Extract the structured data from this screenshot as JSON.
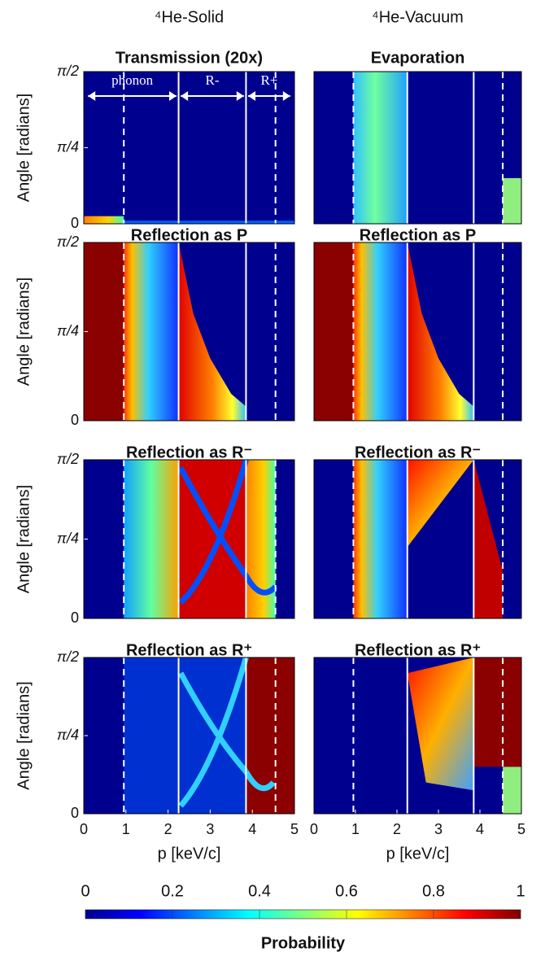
{
  "column_titles": [
    "⁴He-Solid",
    "⁴He-Vacuum"
  ],
  "chart_data": [
    {
      "type": "heatmap",
      "title": "Transmission (20x)",
      "ylabel": "Angle [radians]",
      "xlim": [
        0,
        5
      ],
      "ylim": [
        0,
        1.5708
      ],
      "yticks": [
        0,
        {
          "value": 0.7854,
          "label": "π/4"
        },
        {
          "value": 1.5708,
          "label": "π/2"
        }
      ],
      "dashed_lines": [
        0.95,
        4.55
      ],
      "solid_lines": [
        2.25,
        3.85
      ],
      "annotations": [
        "phonon",
        "R-",
        "R+"
      ]
    },
    {
      "type": "heatmap",
      "title": "Evaporation",
      "xlim": [
        0,
        5
      ],
      "ylim": [
        0,
        1.5708
      ],
      "dashed_lines": [
        0.95,
        4.55
      ],
      "solid_lines": [
        2.25,
        3.85
      ]
    },
    {
      "type": "heatmap",
      "title": "Reflection as P",
      "ylabel": "Angle [radians]",
      "xlim": [
        0,
        5
      ],
      "ylim": [
        0,
        1.5708
      ],
      "yticks": [
        0,
        {
          "value": 0.7854,
          "label": "π/4"
        },
        {
          "value": 1.5708,
          "label": "π/2"
        }
      ],
      "dashed_lines": [
        0.95,
        4.55
      ],
      "solid_lines": [
        2.25,
        3.85
      ]
    },
    {
      "type": "heatmap",
      "title": "Reflection as P",
      "xlim": [
        0,
        5
      ],
      "ylim": [
        0,
        1.5708
      ],
      "dashed_lines": [
        0.95,
        4.55
      ],
      "solid_lines": [
        2.25,
        3.85
      ]
    },
    {
      "type": "heatmap",
      "title": "Reflection as R⁻",
      "ylabel": "Angle [radians]",
      "xlim": [
        0,
        5
      ],
      "ylim": [
        0,
        1.5708
      ],
      "yticks": [
        0,
        {
          "value": 0.7854,
          "label": "π/4"
        },
        {
          "value": 1.5708,
          "label": "π/2"
        }
      ],
      "dashed_lines": [
        0.95,
        4.55
      ],
      "solid_lines": [
        2.25,
        3.85
      ]
    },
    {
      "type": "heatmap",
      "title": "Reflection as R⁻",
      "xlim": [
        0,
        5
      ],
      "ylim": [
        0,
        1.5708
      ],
      "dashed_lines": [
        0.95,
        4.55
      ],
      "solid_lines": [
        2.25,
        3.85
      ]
    },
    {
      "type": "heatmap",
      "title": "Reflection as R⁺",
      "ylabel": "Angle [radians]",
      "xlabel": "p [keV/c]",
      "xlim": [
        0,
        5
      ],
      "xticks": [
        0,
        1,
        2,
        3,
        4,
        5
      ],
      "ylim": [
        0,
        1.5708
      ],
      "yticks": [
        0,
        {
          "value": 0.7854,
          "label": "π/4"
        },
        {
          "value": 1.5708,
          "label": "π/2"
        }
      ],
      "dashed_lines": [
        0.95,
        4.55
      ],
      "solid_lines": [
        2.25,
        3.85
      ]
    },
    {
      "type": "heatmap",
      "title": "Reflection as R⁺",
      "xlabel": "p [keV/c]",
      "xlim": [
        0,
        5
      ],
      "xticks": [
        0,
        1,
        2,
        3,
        4,
        5
      ],
      "ylim": [
        0,
        1.5708
      ],
      "dashed_lines": [
        0.95,
        4.55
      ],
      "solid_lines": [
        2.25,
        3.85
      ]
    }
  ],
  "colorbar": {
    "label": "Probability",
    "lim": [
      0,
      1
    ],
    "ticks": [
      0,
      0.2,
      0.4,
      0.6,
      0.8,
      1
    ]
  }
}
